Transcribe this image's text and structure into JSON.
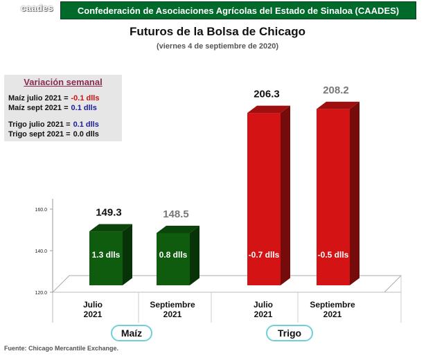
{
  "header": {
    "logo": "caades",
    "banner": "Confederación de Asociaciones Agrícolas del Estado de Sinaloa (CAADES)"
  },
  "chart_data": {
    "type": "bar",
    "title": "Futuros de la Bolsa de Chicago",
    "subtitle": "(viernes 4 de septiembre de 2020)",
    "categories": [
      "Julio\n2021",
      "Septiembre\n2021",
      "Julio\n2021",
      "Septiembre\n2021"
    ],
    "category_lines": [
      [
        "Julio",
        "2021"
      ],
      [
        "Septiembre",
        "2021"
      ],
      [
        "Julio",
        "2021"
      ],
      [
        "Septiembre",
        "2021"
      ]
    ],
    "groups": [
      {
        "name": "Maíz",
        "indices": [
          0,
          1
        ]
      },
      {
        "name": "Trigo",
        "indices": [
          2,
          3
        ]
      }
    ],
    "values": [
      149.3,
      148.5,
      206.3,
      208.2
    ],
    "value_labels": [
      "149.3",
      "148.5",
      "206.3",
      "208.2"
    ],
    "value_label_colors": [
      "#111111",
      "#777777",
      "#111111",
      "#777777"
    ],
    "inner_labels": [
      "1.3 dlls",
      "0.8 dlls",
      "-0.7 dlls",
      "-0.5 dlls"
    ],
    "colors": [
      "#0f5c0f",
      "#0f5c0f",
      "#d41414",
      "#d41414"
    ],
    "y_ticks": [
      120,
      140,
      160
    ],
    "y_tick_labels": [
      "120.0",
      "140.0",
      "160.0"
    ],
    "ylim": [
      120,
      210
    ],
    "grid": false
  },
  "variation": {
    "title": "Variación semanal",
    "rows": [
      {
        "label": "Maíz julio 2021  =",
        "value": "-0.1 dlls",
        "color": "#d01010"
      },
      {
        "label": "Maíz sept 2021  =",
        "value": "0.1 dlls",
        "color": "#1a1aa0"
      },
      {
        "label": "Trigo julio 2021 =",
        "value": "0.1 dlls",
        "color": "#1a1aa0"
      },
      {
        "label": "Trigo sept 2021 =",
        "value": "0.0 dlls",
        "color": "#111111"
      }
    ]
  },
  "legend_ovals": {
    "maiz": "Maíz",
    "trigo": "Trigo"
  },
  "footer": "Fuente: Chicago Mercantile Exchange."
}
